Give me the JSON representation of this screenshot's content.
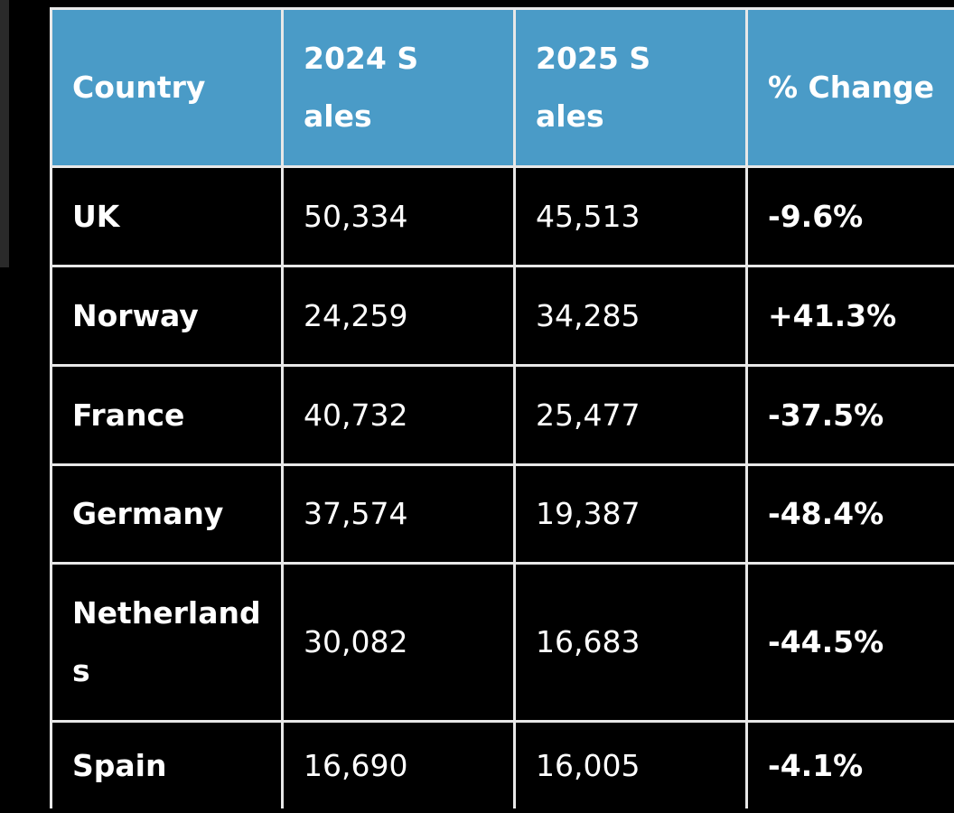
{
  "table": {
    "header": [
      "Country",
      "2024 Sales",
      "2025 Sales",
      "% Change"
    ],
    "rows": [
      [
        "UK",
        "50,334",
        "45,513",
        "-9.6%"
      ],
      [
        "Norway",
        "24,259",
        "34,285",
        "+41.3%"
      ],
      [
        "France",
        "40,732",
        "25,477",
        "-37.5%"
      ],
      [
        "Germany",
        "37,574",
        "19,387",
        "-48.4%"
      ],
      [
        "Netherlands",
        "30,082",
        "16,683",
        "-44.5%"
      ],
      [
        "Spain",
        "16,690",
        "16,005",
        "-4.1%"
      ]
    ]
  }
}
